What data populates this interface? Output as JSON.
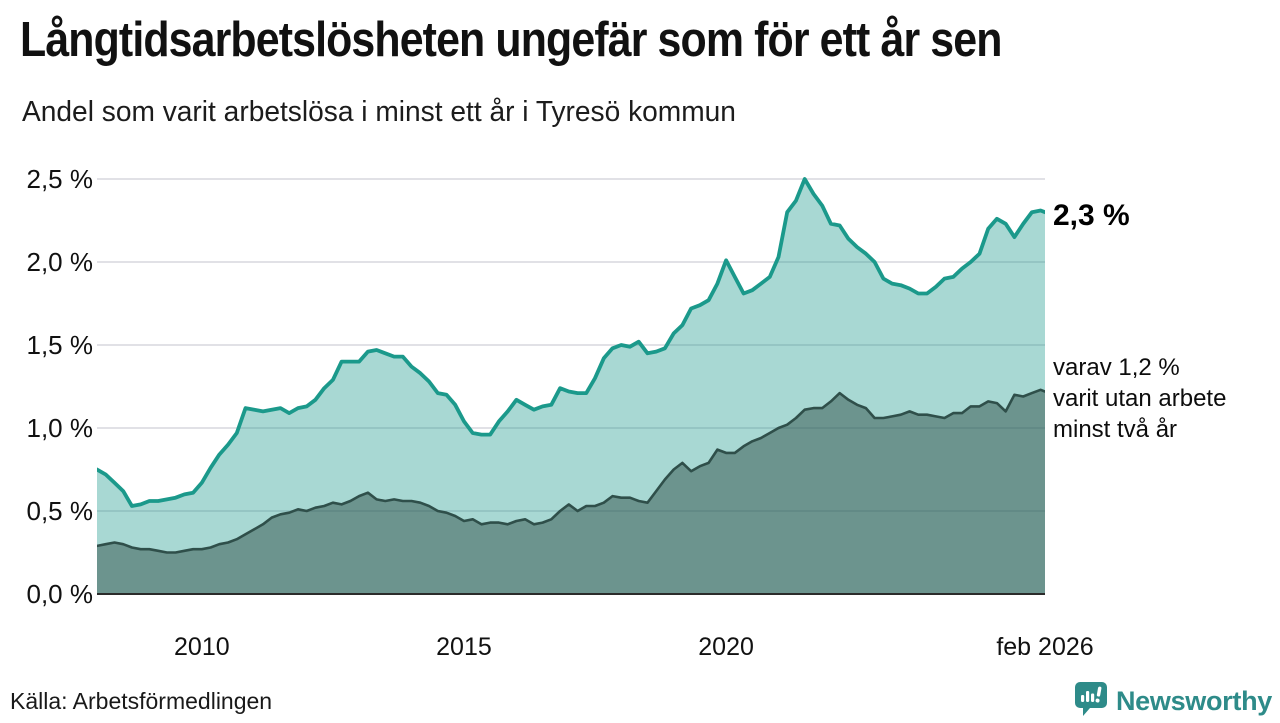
{
  "header": {
    "title": "Långtidsarbetslösheten ungefär som för ett år sen",
    "subtitle": "Andel som varit arbetslösa i minst ett år i Tyresö kommun"
  },
  "chart": {
    "y_axis": {
      "tick_labels": [
        "2,5 %",
        "2,0 %",
        "1,5 %",
        "1,0 %",
        "0,5 %",
        "0,0 %"
      ],
      "tick_values": [
        2.5,
        2.0,
        1.5,
        1.0,
        0.5,
        0.0
      ]
    },
    "x_axis": {
      "ticks": [
        {
          "label": "2010",
          "month_index": 24
        },
        {
          "label": "2015",
          "month_index": 84
        },
        {
          "label": "2020",
          "month_index": 144
        },
        {
          "label": "feb 2026",
          "month_index": 217
        }
      ]
    },
    "annotations": {
      "latest_total": "2,3 %",
      "two_year_line1": "varav 1,2 %",
      "two_year_line2": "varit utan arbete",
      "two_year_line3": "minst två år"
    }
  },
  "chart_data": {
    "type": "area",
    "title": "Långtidsarbetslösheten ungefär som för ett år sen",
    "subtitle": "Andel som varit arbetslösa i minst ett år i Tyresö kommun",
    "unit": "%",
    "x_start": "2008-01",
    "x_end": "2026-02",
    "total_months": 217,
    "sample_step_months": 2,
    "ylim": [
      0,
      2.5
    ],
    "grid": true,
    "series": [
      {
        "name": "Arbetslösa minst ett år",
        "line_color": "#1b998b",
        "fill_color": "#1b998b",
        "fill_opacity": 0.38,
        "latest_value": 2.3,
        "values": [
          0.75,
          0.72,
          0.67,
          0.62,
          0.53,
          0.54,
          0.56,
          0.56,
          0.57,
          0.58,
          0.6,
          0.61,
          0.67,
          0.76,
          0.84,
          0.9,
          0.97,
          1.12,
          1.11,
          1.1,
          1.11,
          1.12,
          1.09,
          1.12,
          1.13,
          1.17,
          1.24,
          1.29,
          1.4,
          1.4,
          1.4,
          1.46,
          1.47,
          1.45,
          1.43,
          1.43,
          1.37,
          1.33,
          1.28,
          1.21,
          1.2,
          1.14,
          1.04,
          0.97,
          0.96,
          0.96,
          1.04,
          1.1,
          1.17,
          1.14,
          1.11,
          1.13,
          1.14,
          1.24,
          1.22,
          1.21,
          1.21,
          1.3,
          1.42,
          1.48,
          1.5,
          1.49,
          1.52,
          1.45,
          1.46,
          1.48,
          1.57,
          1.62,
          1.72,
          1.74,
          1.77,
          1.87,
          2.01,
          1.91,
          1.81,
          1.83,
          1.87,
          1.91,
          2.03,
          2.3,
          2.37,
          2.5,
          2.41,
          2.34,
          2.23,
          2.22,
          2.14,
          2.09,
          2.05,
          2.0,
          1.9,
          1.87,
          1.86,
          1.84,
          1.81,
          1.81,
          1.85,
          1.9,
          1.91,
          1.96,
          2.0,
          2.05,
          2.2,
          2.26,
          2.23,
          2.15,
          2.23,
          2.3,
          2.31,
          2.3
        ]
      },
      {
        "name": "varav utan arbete minst två år",
        "line_color": "#2f4f4a",
        "fill_color": "#2f4f4a",
        "fill_opacity": 0.5,
        "latest_value": 1.2,
        "values": [
          0.29,
          0.3,
          0.31,
          0.3,
          0.28,
          0.27,
          0.27,
          0.26,
          0.25,
          0.25,
          0.26,
          0.27,
          0.27,
          0.28,
          0.3,
          0.31,
          0.33,
          0.36,
          0.39,
          0.42,
          0.46,
          0.48,
          0.49,
          0.51,
          0.5,
          0.52,
          0.53,
          0.55,
          0.54,
          0.56,
          0.59,
          0.61,
          0.57,
          0.56,
          0.57,
          0.56,
          0.56,
          0.55,
          0.53,
          0.5,
          0.49,
          0.47,
          0.44,
          0.45,
          0.42,
          0.43,
          0.43,
          0.42,
          0.44,
          0.45,
          0.42,
          0.43,
          0.45,
          0.5,
          0.54,
          0.5,
          0.53,
          0.53,
          0.55,
          0.59,
          0.58,
          0.58,
          0.56,
          0.55,
          0.62,
          0.69,
          0.75,
          0.79,
          0.74,
          0.77,
          0.79,
          0.87,
          0.85,
          0.85,
          0.89,
          0.92,
          0.94,
          0.97,
          1.0,
          1.02,
          1.06,
          1.11,
          1.12,
          1.12,
          1.16,
          1.21,
          1.17,
          1.14,
          1.12,
          1.06,
          1.06,
          1.07,
          1.08,
          1.1,
          1.08,
          1.08,
          1.07,
          1.06,
          1.09,
          1.09,
          1.13,
          1.13,
          1.16,
          1.15,
          1.1,
          1.2,
          1.19,
          1.21,
          1.23,
          1.22
        ]
      }
    ],
    "legend_position": "none",
    "gridline_color": "#e1e1e6",
    "axis_color": "#2b2b2b"
  },
  "footer": {
    "source": "Källa: Arbetsförmedlingen",
    "brand": "Newsworthy",
    "brand_color": "#2e8b89"
  }
}
